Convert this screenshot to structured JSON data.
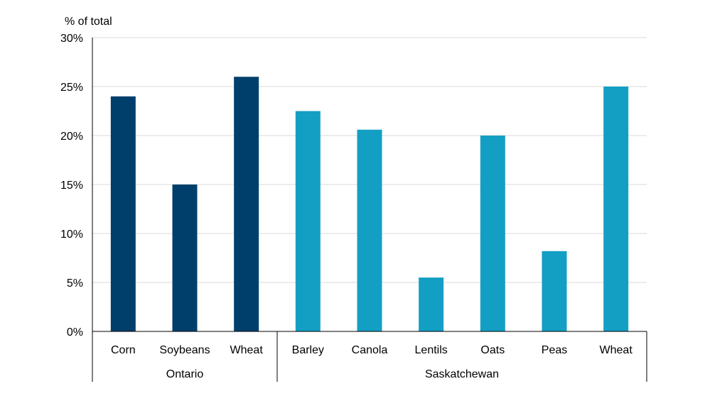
{
  "chart_data": {
    "type": "bar",
    "ylabel": "% of total",
    "ylim": [
      0,
      30
    ],
    "y_ticks": [
      0,
      5,
      10,
      15,
      20,
      25,
      30
    ],
    "y_tick_labels": [
      "0%",
      "5%",
      "10%",
      "15%",
      "20%",
      "25%",
      "30%"
    ],
    "grid": true,
    "groups": [
      {
        "name": "Ontario",
        "color": "#003f6b",
        "categories": [
          "Corn",
          "Soybeans",
          "Wheat"
        ],
        "values": [
          24,
          15,
          26
        ]
      },
      {
        "name": "Saskatchewan",
        "color": "#139fc4",
        "categories": [
          "Barley",
          "Canola",
          "Lentils",
          "Oats",
          "Peas",
          "Wheat"
        ],
        "values": [
          22.5,
          20.6,
          5.5,
          20,
          8.2,
          25
        ]
      }
    ]
  }
}
